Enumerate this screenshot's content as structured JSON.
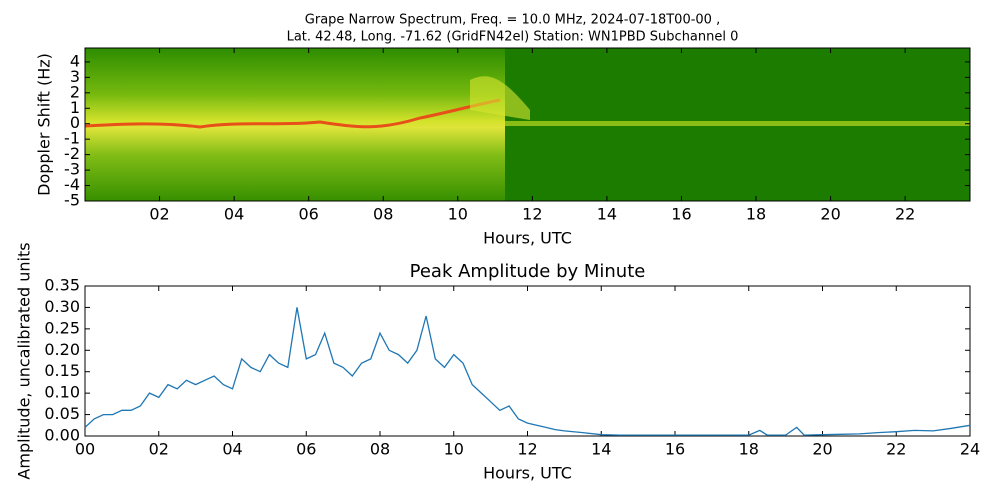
{
  "chart_data": [
    {
      "type": "spectrogram",
      "title": [
        "Grape Narrow Spectrum, Freq. = 10.0 MHz, 2024-07-18T00-00 ,",
        "Lat.  42.48, Long. -71.62 (GridFN42el) Station: WN1PBD Subchannel 0"
      ],
      "xlabel": "Hours, UTC",
      "ylabel": "Doppler Shift (Hz)",
      "xlim": [
        0,
        23.74
      ],
      "ylim": [
        -5,
        4.9
      ],
      "xticks": [
        {
          "value": 2,
          "label": "02"
        },
        {
          "value": 4,
          "label": "04"
        },
        {
          "value": 6,
          "label": "06"
        },
        {
          "value": 8,
          "label": "08"
        },
        {
          "value": 10,
          "label": "10"
        },
        12,
        14,
        16,
        18,
        20,
        22
      ],
      "yticks": [
        -5,
        -4,
        -3,
        -2,
        -1,
        0,
        1,
        2,
        3,
        4
      ]
    },
    {
      "type": "line",
      "title": "Peak Amplitude by Minute",
      "xlabel": "Hours, UTC",
      "ylabel": "Amplitude, uncalibrated units",
      "xlim": [
        0,
        24
      ],
      "ylim": [
        0,
        0.35
      ],
      "xticks": [
        {
          "value": 0,
          "label": "00"
        },
        {
          "value": 2,
          "label": "02"
        },
        {
          "value": 4,
          "label": "04"
        },
        {
          "value": 6,
          "label": "06"
        },
        {
          "value": 8,
          "label": "08"
        },
        10,
        12,
        14,
        16,
        18,
        20,
        22,
        24
      ],
      "yticks": [
        {
          "value": 0,
          "label": "0.00"
        },
        0.05,
        {
          "value": 0.1,
          "label": "0.10"
        },
        0.15,
        {
          "value": 0.2,
          "label": "0.20"
        },
        0.25,
        {
          "value": 0.3,
          "label": "0.30"
        },
        0.35
      ],
      "x": [
        0,
        0.25,
        0.5,
        0.75,
        1,
        1.25,
        1.5,
        1.75,
        2,
        2.25,
        2.5,
        2.75,
        3,
        3.25,
        3.5,
        3.75,
        4,
        4.25,
        4.5,
        4.75,
        5,
        5.25,
        5.5,
        5.75,
        6,
        6.25,
        6.5,
        6.75,
        7,
        7.25,
        7.5,
        7.75,
        8,
        8.25,
        8.5,
        8.75,
        9,
        9.25,
        9.5,
        9.75,
        10,
        10.25,
        10.5,
        10.75,
        11,
        11.25,
        11.5,
        11.75,
        12,
        12.25,
        12.5,
        12.75,
        13,
        13.5,
        14,
        14.5,
        15,
        15.5,
        16,
        16.5,
        17,
        17.5,
        18,
        18.3,
        18.5,
        19,
        19.3,
        19.5,
        20,
        20.5,
        21,
        21.5,
        22,
        22.5,
        23,
        23.5,
        24
      ],
      "series": [
        {
          "name": "Peak Amplitude",
          "color": "#1f77b4",
          "values": [
            0.02,
            0.04,
            0.05,
            0.05,
            0.06,
            0.06,
            0.07,
            0.1,
            0.09,
            0.12,
            0.11,
            0.13,
            0.12,
            0.13,
            0.14,
            0.12,
            0.11,
            0.18,
            0.16,
            0.15,
            0.19,
            0.17,
            0.16,
            0.3,
            0.18,
            0.19,
            0.24,
            0.17,
            0.16,
            0.14,
            0.17,
            0.18,
            0.24,
            0.2,
            0.19,
            0.17,
            0.2,
            0.28,
            0.18,
            0.16,
            0.19,
            0.17,
            0.12,
            0.1,
            0.08,
            0.06,
            0.07,
            0.04,
            0.03,
            0.025,
            0.02,
            0.015,
            0.012,
            0.008,
            0.003,
            0.002,
            0.002,
            0.002,
            0.002,
            0.002,
            0.002,
            0.002,
            0.002,
            0.013,
            0.002,
            0.002,
            0.02,
            0.002,
            0.003,
            0.004,
            0.005,
            0.008,
            0.01,
            0.013,
            0.012,
            0.018,
            0.025
          ]
        }
      ]
    }
  ]
}
